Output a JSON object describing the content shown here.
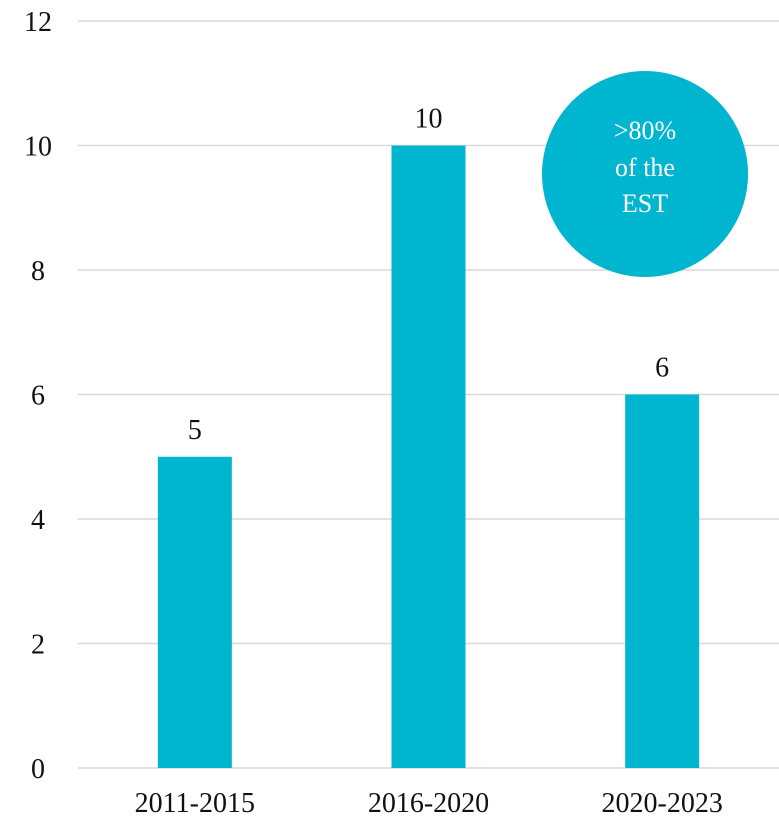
{
  "chart_data": {
    "type": "bar",
    "categories": [
      "2011-2015",
      "2016-2020",
      "2020-2023"
    ],
    "values": [
      5,
      10,
      6
    ],
    "data_labels": [
      "5",
      "10",
      "6"
    ],
    "title": "",
    "xlabel": "",
    "ylabel": "",
    "ylim": [
      0,
      12
    ],
    "yticks": [
      0,
      2,
      4,
      6,
      8,
      10,
      12
    ],
    "grid": true,
    "bar_color": "#00B5CF",
    "annotation": {
      "lines": [
        ">80%",
        "of the",
        "EST"
      ],
      "color": "#00B5CF"
    }
  }
}
